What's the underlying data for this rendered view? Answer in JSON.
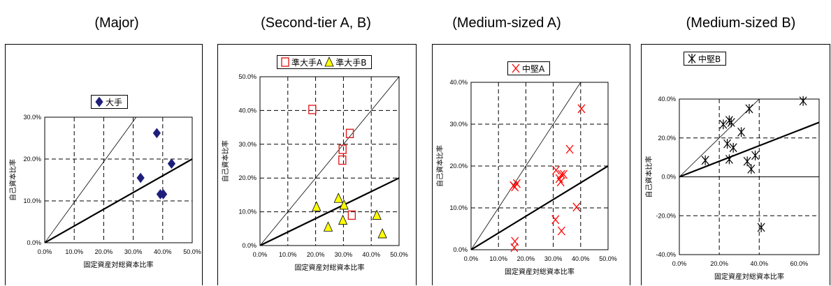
{
  "captions": [
    "(Major)",
    "(Second-tier A, B)",
    "(Medium-sized A)",
    "(Medium-sized B)"
  ],
  "chart_data": [
    {
      "type": "scatter",
      "caption": "(Major)",
      "xlabel": "固定資産対総資本比率",
      "ylabel": "自己資本比率",
      "xlim": [
        0,
        0.5
      ],
      "ylim": [
        0,
        0.3
      ],
      "xticks": [
        0,
        0.1,
        0.2,
        0.3,
        0.4,
        0.5
      ],
      "yticks": [
        0,
        0.1,
        0.2,
        0.3
      ],
      "xtick_labels": [
        "0.0%",
        "10.0%",
        "20.0%",
        "30.0%",
        "40.0%",
        "50.0%"
      ],
      "ytick_labels": [
        "0.0%",
        "10.0%",
        "20.0%",
        "30.0%"
      ],
      "grid": true,
      "legend_position": "top-center",
      "series": [
        {
          "name": "大手",
          "marker": "diamond",
          "color": "#1f1f7a",
          "points": [
            [
              0.325,
              0.155
            ],
            [
              0.38,
              0.262
            ],
            [
              0.392,
              0.116
            ],
            [
              0.402,
              0.116
            ],
            [
              0.43,
              0.189
            ]
          ]
        }
      ],
      "lines": [
        {
          "style": "thin",
          "x": [
            0,
            0.31
          ],
          "y": [
            0,
            0.3
          ]
        },
        {
          "style": "thick",
          "x": [
            0,
            0.5
          ],
          "y": [
            0,
            0.2
          ]
        }
      ]
    },
    {
      "type": "scatter",
      "caption": "(Second-tier A, B)",
      "xlabel": "固定資産対総資本比率",
      "ylabel": "自己資本比率",
      "xlim": [
        0,
        0.5
      ],
      "ylim": [
        0,
        0.5
      ],
      "xticks": [
        0,
        0.1,
        0.2,
        0.3,
        0.4,
        0.5
      ],
      "yticks": [
        0,
        0.1,
        0.2,
        0.3,
        0.4,
        0.5
      ],
      "xtick_labels": [
        "0.0%",
        "10.0%",
        "20.0%",
        "30.0%",
        "40.0%",
        "50.0%"
      ],
      "ytick_labels": [
        "0.0%",
        "10.0%",
        "20.0%",
        "30.0%",
        "40.0%",
        "50.0%"
      ],
      "grid": true,
      "legend_position": "top-center",
      "series": [
        {
          "name": "準大手A",
          "marker": "square-open",
          "color": "#e02020",
          "points": [
            [
              0.188,
              0.403
            ],
            [
              0.297,
              0.285
            ],
            [
              0.296,
              0.253
            ],
            [
              0.323,
              0.332
            ],
            [
              0.33,
              0.09
            ]
          ]
        },
        {
          "name": "準大手B",
          "marker": "triangle",
          "color": "#ffff00",
          "points": [
            [
              0.203,
              0.115
            ],
            [
              0.245,
              0.055
            ],
            [
              0.282,
              0.14
            ],
            [
              0.298,
              0.075
            ],
            [
              0.302,
              0.12
            ],
            [
              0.42,
              0.09
            ],
            [
              0.44,
              0.035
            ]
          ]
        }
      ],
      "lines": [
        {
          "style": "thin",
          "x": [
            0,
            0.5
          ],
          "y": [
            0,
            0.5
          ]
        },
        {
          "style": "thick",
          "x": [
            0,
            0.5
          ],
          "y": [
            0,
            0.2
          ]
        }
      ]
    },
    {
      "type": "scatter",
      "caption": "(Medium-sized A)",
      "xlabel": "固定資産対総資本比率",
      "ylabel": "自己資本比率",
      "xlim": [
        0,
        0.5
      ],
      "ylim": [
        0,
        0.4
      ],
      "xticks": [
        0,
        0.1,
        0.2,
        0.3,
        0.4,
        0.5
      ],
      "yticks": [
        0,
        0.1,
        0.2,
        0.3,
        0.4
      ],
      "xtick_labels": [
        "0.0%",
        "10.0%",
        "20.0%",
        "30.0%",
        "40.0%",
        "50.0%"
      ],
      "ytick_labels": [
        "0.0%",
        "10.0%",
        "20.0%",
        "30.0%",
        "40.0%"
      ],
      "grid": true,
      "legend_position": "top-left",
      "series": [
        {
          "name": "中堅A",
          "marker": "x",
          "color": "#ff0000",
          "points": [
            [
              0.155,
              0.153
            ],
            [
              0.16,
              0.15
            ],
            [
              0.167,
              0.158
            ],
            [
              0.16,
              0.02
            ],
            [
              0.158,
              0.005
            ],
            [
              0.31,
              0.19
            ],
            [
              0.308,
              0.072
            ],
            [
              0.322,
              0.17
            ],
            [
              0.33,
              0.18
            ],
            [
              0.327,
              0.162
            ],
            [
              0.338,
              0.18
            ],
            [
              0.33,
              0.045
            ],
            [
              0.36,
              0.24
            ],
            [
              0.385,
              0.102
            ],
            [
              0.403,
              0.337
            ]
          ]
        }
      ],
      "lines": [
        {
          "style": "thin",
          "x": [
            0,
            0.4
          ],
          "y": [
            0,
            0.4
          ]
        },
        {
          "style": "thick",
          "x": [
            0,
            0.5
          ],
          "y": [
            0,
            0.2
          ]
        }
      ]
    },
    {
      "type": "scatter",
      "caption": "(Medium-sized B)",
      "xlabel": "固定資産対総資本比率",
      "ylabel": "自己資本比率",
      "xlim": [
        0,
        0.7
      ],
      "ylim": [
        -0.4,
        0.4
      ],
      "xticks": [
        0,
        0.2,
        0.4,
        0.6
      ],
      "yticks": [
        -0.4,
        -0.2,
        0,
        0.2,
        0.4
      ],
      "xtick_labels": [
        "0.0%",
        "20.0%",
        "40.0%",
        "60.0%"
      ],
      "ytick_labels": [
        "-40.0%",
        "-20.0%",
        "0.0%",
        "20.0%",
        "40.0%"
      ],
      "grid": true,
      "legend_position": "top-left",
      "series": [
        {
          "name": "中堅B",
          "marker": "asterisk",
          "color": "#000000",
          "points": [
            [
              0.13,
              0.085
            ],
            [
              0.22,
              0.27
            ],
            [
              0.24,
              0.17
            ],
            [
              0.25,
              0.29
            ],
            [
              0.25,
              0.09
            ],
            [
              0.26,
              0.28
            ],
            [
              0.27,
              0.15
            ],
            [
              0.31,
              0.23
            ],
            [
              0.34,
              0.08
            ],
            [
              0.35,
              0.35
            ],
            [
              0.36,
              0.04
            ],
            [
              0.38,
              0.11
            ],
            [
              0.41,
              -0.26
            ],
            [
              0.62,
              0.39
            ]
          ]
        }
      ],
      "lines": [
        {
          "style": "thin",
          "x": [
            0,
            0.4
          ],
          "y": [
            0,
            0.4
          ]
        },
        {
          "style": "thick",
          "x": [
            0,
            0.7
          ],
          "y": [
            0,
            0.28
          ]
        }
      ]
    }
  ]
}
